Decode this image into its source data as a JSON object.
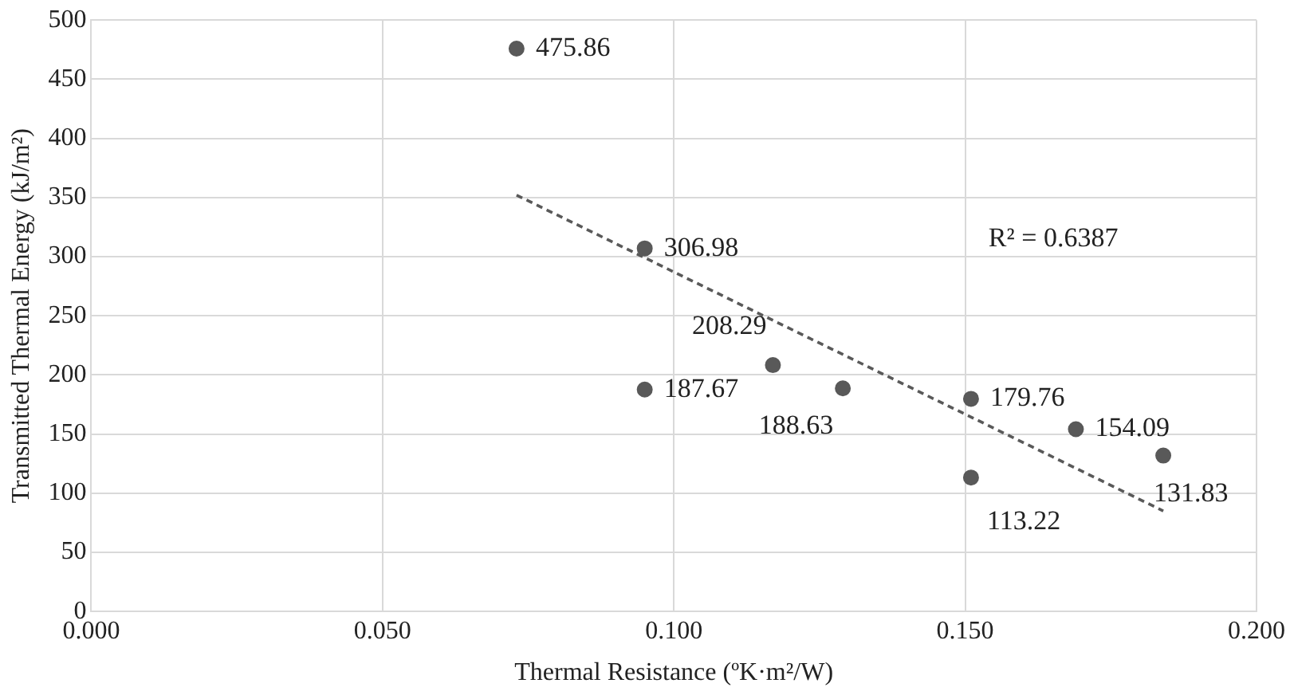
{
  "chart_data": {
    "type": "scatter",
    "xlabel": "Thermal Resistance (ºK·m²/W)",
    "ylabel": "Transmitted Thermal Energy (kJ/m²)",
    "xlim": [
      0,
      0.2
    ],
    "xticks": [
      {
        "value": 0,
        "label": "0.000"
      },
      {
        "value": 0.05,
        "label": "0.050"
      },
      {
        "value": 0.1,
        "label": "0.100"
      },
      {
        "value": 0.15,
        "label": "0.150"
      },
      {
        "value": 0.2,
        "label": "0.200"
      }
    ],
    "ylim": [
      0,
      500
    ],
    "yticks": [
      0,
      50,
      100,
      150,
      200,
      250,
      300,
      350,
      400,
      450,
      500
    ],
    "grid": true,
    "marker": "circle",
    "annotations": [
      "R² = 0.6387"
    ],
    "series": [
      {
        "color": "#595959",
        "x": [
          0.073,
          0.095,
          0.095,
          0.117,
          0.129,
          0.151,
          0.151,
          0.169,
          0.184
        ],
        "values": [
          475.86,
          306.98,
          187.67,
          208.29,
          188.63,
          179.76,
          113.22,
          154.09,
          131.83
        ],
        "value_labels": [
          "475.86",
          "306.98",
          "187.67",
          "208.29",
          "188.63",
          "179.76",
          "113.22",
          "154.09",
          "131.83"
        ]
      },
      {
        "type": "line",
        "color": "#595959",
        "line_style": "dashed",
        "marker": "none",
        "x": [
          0.073,
          0.184
        ],
        "values": [
          352,
          85
        ]
      }
    ]
  }
}
